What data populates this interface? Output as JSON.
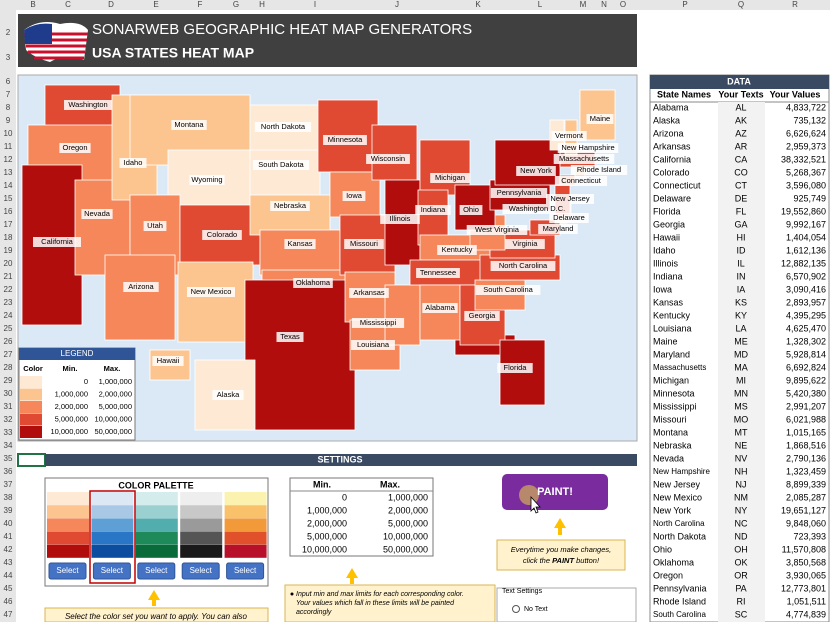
{
  "excel": {
    "columns": [
      "B",
      "C",
      "D",
      "E",
      "F",
      "G",
      "H",
      "I",
      "J",
      "K",
      "L",
      "M",
      "N",
      "O",
      "P",
      "Q",
      "R"
    ],
    "rows": [
      "2",
      "3",
      "6",
      "7",
      "8",
      "9",
      "10",
      "11",
      "12",
      "13",
      "14",
      "15",
      "16",
      "17",
      "18",
      "19",
      "20",
      "21",
      "22",
      "23",
      "24",
      "25",
      "26",
      "27",
      "28",
      "29",
      "30",
      "31",
      "32",
      "33",
      "34",
      "35",
      "36",
      "37",
      "38",
      "39",
      "40",
      "41",
      "42",
      "43",
      "44",
      "45",
      "46",
      "47"
    ]
  },
  "header": {
    "title": "SONARWEB GEOGRAPHIC HEAT MAP GENERATORS",
    "subtitle": "USA STATES HEAT MAP"
  },
  "map": {
    "labels": [
      "Washington",
      "Oregon",
      "California",
      "Nevada",
      "Idaho",
      "Montana",
      "Wyoming",
      "Utah",
      "Arizona",
      "Colorado",
      "New Mexico",
      "North Dakota",
      "South Dakota",
      "Nebraska",
      "Kansas",
      "Oklahoma",
      "Texas",
      "Minnesota",
      "Iowa",
      "Missouri",
      "Arkansas",
      "Louisiana",
      "Wisconsin",
      "Illinois",
      "Mississippi",
      "Michigan",
      "Indiana",
      "Kentucky",
      "Tennessee",
      "Alabama",
      "Georgia",
      "Florida",
      "South Carolina",
      "North Carolina",
      "Virginia",
      "West Virginia",
      "Ohio",
      "Pennsylvania",
      "New York",
      "Maryland",
      "Delaware",
      "New Jersey",
      "Washington D.C.",
      "Connecticut",
      "Rhode Island",
      "Massachusetts",
      "New Hampshire",
      "Vermont",
      "Maine",
      "Hawaii",
      "Alaska"
    ]
  },
  "legend": {
    "title": "LEGEND",
    "headers": [
      "Color",
      "Min.",
      "Max."
    ],
    "rows": [
      [
        "0",
        "1,000,000"
      ],
      [
        "1,000,000",
        "2,000,000"
      ],
      [
        "2,000,000",
        "5,000,000"
      ],
      [
        "5,000,000",
        "10,000,000"
      ],
      [
        "10,000,000",
        "50,000,000"
      ]
    ]
  },
  "data_table": {
    "title": "DATA",
    "headers": [
      "State Names",
      "Your Texts",
      "Your Values"
    ],
    "rows": [
      [
        "Alabama",
        "AL",
        "4,833,722"
      ],
      [
        "Alaska",
        "AK",
        "735,132"
      ],
      [
        "Arizona",
        "AZ",
        "6,626,624"
      ],
      [
        "Arkansas",
        "AR",
        "2,959,373"
      ],
      [
        "California",
        "CA",
        "38,332,521"
      ],
      [
        "Colorado",
        "CO",
        "5,268,367"
      ],
      [
        "Connecticut",
        "CT",
        "3,596,080"
      ],
      [
        "Delaware",
        "DE",
        "925,749"
      ],
      [
        "Florida",
        "FL",
        "19,552,860"
      ],
      [
        "Georgia",
        "GA",
        "9,992,167"
      ],
      [
        "Hawaii",
        "HI",
        "1,404,054"
      ],
      [
        "Idaho",
        "ID",
        "1,612,136"
      ],
      [
        "Illinois",
        "IL",
        "12,882,135"
      ],
      [
        "Indiana",
        "IN",
        "6,570,902"
      ],
      [
        "Iowa",
        "IA",
        "3,090,416"
      ],
      [
        "Kansas",
        "KS",
        "2,893,957"
      ],
      [
        "Kentucky",
        "KY",
        "4,395,295"
      ],
      [
        "Louisiana",
        "LA",
        "4,625,470"
      ],
      [
        "Maine",
        "ME",
        "1,328,302"
      ],
      [
        "Maryland",
        "MD",
        "5,928,814"
      ],
      [
        "Massachusetts",
        "MA",
        "6,692,824"
      ],
      [
        "Michigan",
        "MI",
        "9,895,622"
      ],
      [
        "Minnesota",
        "MN",
        "5,420,380"
      ],
      [
        "Mississippi",
        "MS",
        "2,991,207"
      ],
      [
        "Missouri",
        "MO",
        "6,021,988"
      ],
      [
        "Montana",
        "MT",
        "1,015,165"
      ],
      [
        "Nebraska",
        "NE",
        "1,868,516"
      ],
      [
        "Nevada",
        "NV",
        "2,790,136"
      ],
      [
        "New Hampshire",
        "NH",
        "1,323,459"
      ],
      [
        "New Jersey",
        "NJ",
        "8,899,339"
      ],
      [
        "New Mexico",
        "NM",
        "2,085,287"
      ],
      [
        "New York",
        "NY",
        "19,651,127"
      ],
      [
        "North Carolina",
        "NC",
        "9,848,060"
      ],
      [
        "North Dakota",
        "ND",
        "723,393"
      ],
      [
        "Ohio",
        "OH",
        "11,570,808"
      ],
      [
        "Oklahoma",
        "OK",
        "3,850,568"
      ],
      [
        "Oregon",
        "OR",
        "3,930,065"
      ],
      [
        "Pennsylvania",
        "PA",
        "12,773,801"
      ],
      [
        "Rhode Island",
        "RI",
        "1,051,511"
      ],
      [
        "South Carolina",
        "SC",
        "4,774,839"
      ]
    ]
  },
  "settings": {
    "title": "SETTINGS",
    "palette": {
      "title": "COLOR PALETTE",
      "buttons": [
        "Select",
        "Select",
        "Select",
        "Select",
        "Select"
      ],
      "note": "Select the color set you want to apply. You can also"
    },
    "limits": {
      "headers": [
        "Min.",
        "Max."
      ],
      "rows": [
        [
          "0",
          "1,000,000"
        ],
        [
          "1,000,000",
          "2,000,000"
        ],
        [
          "2,000,000",
          "5,000,000"
        ],
        [
          "5,000,000",
          "10,000,000"
        ],
        [
          "10,000,000",
          "50,000,000"
        ]
      ],
      "note": [
        "Input min and max limits for each corresponding color.",
        "Your values which fall in these limits will be painted",
        "accordingly"
      ]
    },
    "paint_button": "PAINT!",
    "paint_note": {
      "line1": "Everytime you make changes,",
      "pre": "click the ",
      "bold": "PAINT",
      "post": " button!"
    },
    "text_settings": {
      "title": "Text Settings",
      "option": "No Text"
    }
  }
}
